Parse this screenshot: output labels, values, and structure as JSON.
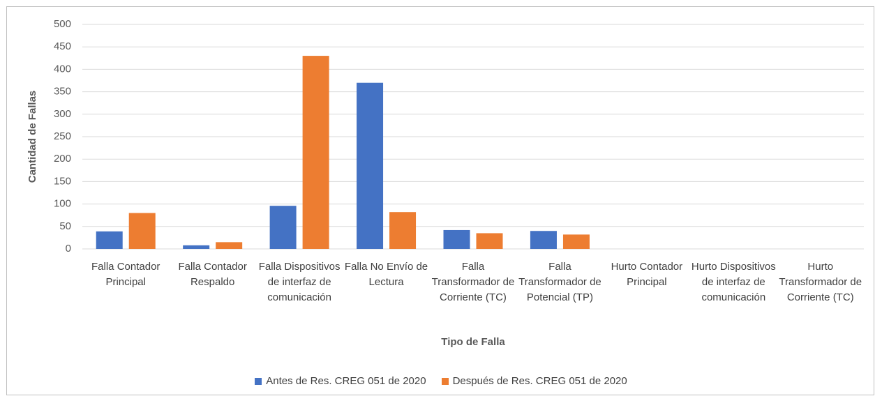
{
  "chart_data": {
    "type": "bar",
    "x_label": "Tipo de Falla",
    "y_label": "Cantidad de Fallas",
    "categories": [
      "Falla Contador Principal",
      "Falla Contador Respaldo",
      "Falla Dispositivos de interfaz de comunicación",
      "Falla No Envío de Lectura",
      "Falla Transformador de Corriente (TC)",
      "Falla Transformador de Potencial (TP)",
      "Hurto Contador Principal",
      "Hurto Dispositivos de interfaz de comunicación",
      "Hurto Transformador de Corriente (TC)"
    ],
    "series": [
      {
        "name": "Antes de Res. CREG 051 de 2020",
        "color": "#4472c4",
        "values": [
          39,
          8,
          96,
          370,
          42,
          40,
          0,
          0,
          0
        ]
      },
      {
        "name": "Después de Res. CREG 051 de 2020",
        "color": "#ed7d31",
        "values": [
          80,
          15,
          430,
          82,
          35,
          32,
          0,
          0,
          0
        ]
      }
    ],
    "ylim": [
      0,
      500
    ],
    "yticks": [
      0,
      50,
      100,
      150,
      200,
      250,
      300,
      350,
      400,
      450,
      500
    ],
    "grid": true,
    "legend": "bottom"
  }
}
